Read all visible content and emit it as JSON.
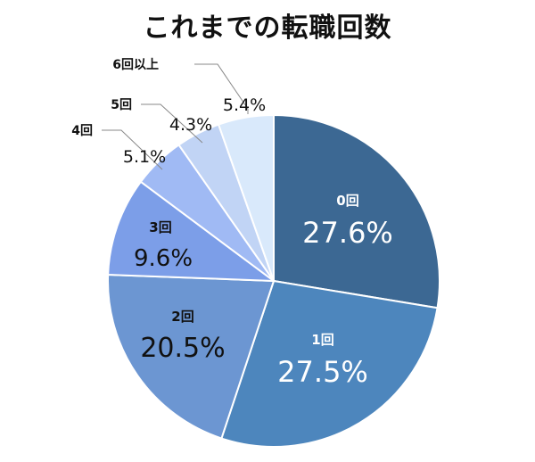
{
  "chart_data": {
    "type": "pie",
    "title": "これまでの転職回数",
    "categories": [
      "0回",
      "1回",
      "2回",
      "3回",
      "4回",
      "5回",
      "6回以上"
    ],
    "values": [
      27.6,
      27.5,
      20.5,
      9.6,
      5.1,
      4.3,
      5.4
    ],
    "value_labels": [
      "27.6%",
      "27.5%",
      "20.5%",
      "9.6%",
      "5.1%",
      "4.3%",
      "5.4%"
    ],
    "colors": [
      "#3c6893",
      "#4d86bd",
      "#6c96d2",
      "#7c9ee8",
      "#a0baf4",
      "#c1d4f5",
      "#d9e9fb"
    ],
    "start": "12 o'clock",
    "direction": "clockwise",
    "legend": "none"
  }
}
